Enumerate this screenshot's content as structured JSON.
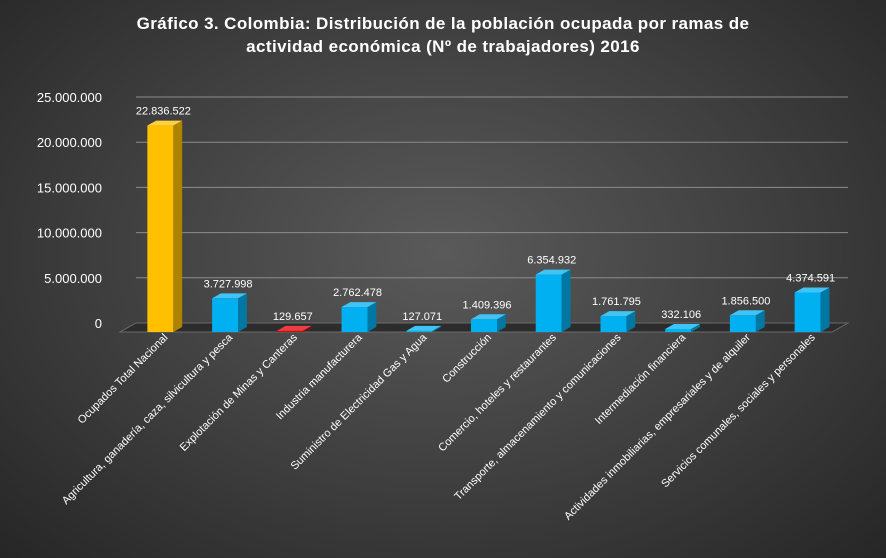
{
  "chart_data": {
    "type": "bar",
    "title_lines": [
      "Gráfico 3. Colombia: Distribución de la población ocupada por ramas de",
      "actividad económica (Nº de trabajadores) 2016"
    ],
    "xlabel": "",
    "ylabel": "",
    "ylim": [
      0,
      25000000
    ],
    "yticks": [
      0,
      5000000,
      10000000,
      15000000,
      20000000,
      25000000
    ],
    "ytick_labels": [
      "0",
      "5.000.000",
      "10.000.000",
      "15.000.000",
      "20.000.000",
      "25.000.000"
    ],
    "grid": true,
    "legend": "none",
    "categories": [
      "Ocupados Total Nacional",
      "Agricultura, ganadería, caza, silvicultura y pesca",
      "Explotación de Minas y Canteras",
      "Industria manufacturera",
      "Suministro de Electricidad Gas y Agua",
      "Construcción",
      "Comercio, hoteles y restaurantes",
      "Transporte, almacenamiento y comunicaciones",
      "Intermediación financiera",
      "Actividades inmobiliarias, empresariales y de alquiler",
      "Servicios comunales, sociales y personales"
    ],
    "values": [
      22836522,
      3727998,
      129657,
      2762478,
      127071,
      1409396,
      6354932,
      1761795,
      332106,
      1856500,
      4374591
    ],
    "value_labels": [
      "22.836.522",
      "3.727.998",
      "129.657",
      "2.762.478",
      "127.071",
      "1.409.396",
      "6.354.932",
      "1.761.795",
      "332.106",
      "1.856.500",
      "4.374.591"
    ],
    "bar_colors": [
      "#FFC000",
      "#00B0F0",
      "#E00000",
      "#00B0F0",
      "#00B0F0",
      "#00B0F0",
      "#00B0F0",
      "#00B0F0",
      "#00B0F0",
      "#00B0F0",
      "#00B0F0"
    ],
    "style": "3d-column"
  }
}
